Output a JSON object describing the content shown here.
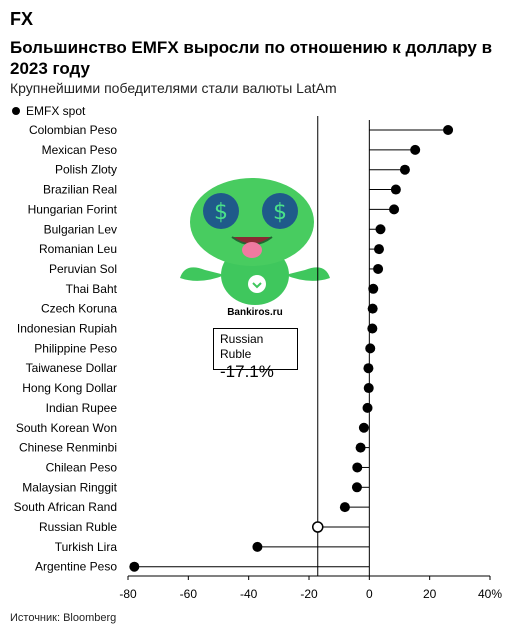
{
  "header": {
    "kicker": "FX",
    "title": "Большинство EMFX выросли по отношению к доллару в 2023 году",
    "subtitle": "Крупнейшими победителями стали валюты LatAm"
  },
  "legend": {
    "label": "EMFX spot"
  },
  "watermark": {
    "text": "Bankiros.ru"
  },
  "annotation": {
    "name": "Russian Ruble",
    "value": "-17.1%"
  },
  "footer": {
    "source": "Источник: Bloomberg"
  },
  "chart_data": {
    "type": "dot",
    "categories": [
      "Colombian Peso",
      "Mexican Peso",
      "Polish Zloty",
      "Brazilian Real",
      "Hungarian Forint",
      "Bulgarian Lev",
      "Romanian Leu",
      "Peruvian Sol",
      "Thai Baht",
      "Czech Koruna",
      "Indonesian Rupiah",
      "Philippine Peso",
      "Taiwanese Dollar",
      "Hong Kong Dollar",
      "Indian Rupee",
      "South Korean Won",
      "Chinese Renminbi",
      "Chilean Peso",
      "Malaysian Ringgit",
      "South African Rand",
      "Russian Ruble",
      "Turkish Lira",
      "Argentine Peso"
    ],
    "series": [
      {
        "name": "EMFX spot",
        "values": [
          26.1,
          15.2,
          11.8,
          8.8,
          8.2,
          3.7,
          3.2,
          2.9,
          1.3,
          1.1,
          1.0,
          0.3,
          -0.3,
          -0.2,
          -0.6,
          -1.8,
          -2.9,
          -4.0,
          -4.1,
          -8.1,
          -17.1,
          -37.1,
          -77.9
        ]
      }
    ],
    "highlight": "Russian Ruble",
    "xlim": [
      -80,
      40
    ],
    "xticks": [
      "-80",
      "-60",
      "-40",
      "-20",
      "0",
      "20",
      "40%"
    ],
    "reference_line": -17.1,
    "grid": false,
    "legend_position": "top-left"
  }
}
